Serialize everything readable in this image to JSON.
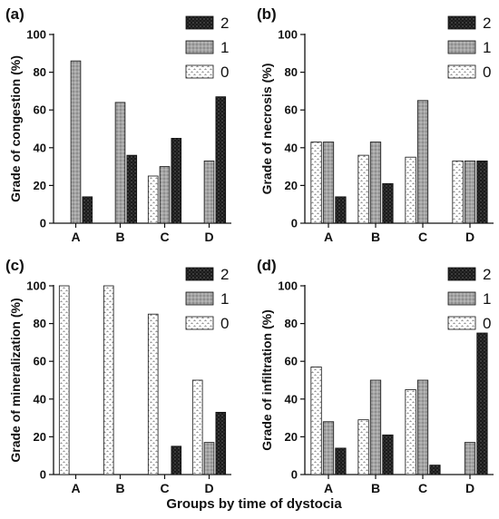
{
  "figure": {
    "xlabel": "Groups by time of dystocia"
  },
  "chart_data": [
    {
      "type": "bar",
      "panel": "(a)",
      "title": "",
      "xlabel": "",
      "ylabel": "Grade of congestion (%)",
      "ylim": [
        0,
        100
      ],
      "yticks": [
        0,
        20,
        40,
        60,
        80,
        100
      ],
      "categories": [
        "A",
        "B",
        "C",
        "D"
      ],
      "legend_position": "top-right",
      "series": [
        {
          "name": "0",
          "values": [
            0,
            0,
            25,
            0
          ]
        },
        {
          "name": "1",
          "values": [
            86,
            64,
            30,
            33
          ]
        },
        {
          "name": "2",
          "values": [
            14,
            36,
            45,
            67
          ]
        }
      ]
    },
    {
      "type": "bar",
      "panel": "(b)",
      "title": "",
      "xlabel": "",
      "ylabel": "Grade of necrosis (%)",
      "ylim": [
        0,
        100
      ],
      "yticks": [
        0,
        20,
        40,
        60,
        80,
        100
      ],
      "categories": [
        "A",
        "B",
        "C",
        "D"
      ],
      "legend_position": "top-right",
      "series": [
        {
          "name": "0",
          "values": [
            43,
            36,
            35,
            33
          ]
        },
        {
          "name": "1",
          "values": [
            43,
            43,
            65,
            33
          ]
        },
        {
          "name": "2",
          "values": [
            14,
            21,
            0,
            33
          ]
        }
      ]
    },
    {
      "type": "bar",
      "panel": "(c)",
      "title": "",
      "xlabel": "",
      "ylabel": "Grade of mineralization (%)",
      "ylim": [
        0,
        100
      ],
      "yticks": [
        0,
        20,
        40,
        60,
        80,
        100
      ],
      "categories": [
        "A",
        "B",
        "C",
        "D"
      ],
      "legend_position": "top-right",
      "series": [
        {
          "name": "0",
          "values": [
            100,
            100,
            85,
            50
          ]
        },
        {
          "name": "1",
          "values": [
            0,
            0,
            0,
            17
          ]
        },
        {
          "name": "2",
          "values": [
            0,
            0,
            15,
            33
          ]
        }
      ]
    },
    {
      "type": "bar",
      "panel": "(d)",
      "title": "",
      "xlabel": "",
      "ylabel": "Grade of infiltration (%)",
      "ylim": [
        0,
        100
      ],
      "yticks": [
        0,
        20,
        40,
        60,
        80,
        100
      ],
      "categories": [
        "A",
        "B",
        "C",
        "D"
      ],
      "legend_position": "top-right",
      "series": [
        {
          "name": "0",
          "values": [
            57,
            29,
            45,
            0
          ]
        },
        {
          "name": "1",
          "values": [
            28,
            50,
            50,
            17
          ]
        },
        {
          "name": "2",
          "values": [
            14,
            21,
            5,
            75
          ]
        }
      ]
    }
  ]
}
